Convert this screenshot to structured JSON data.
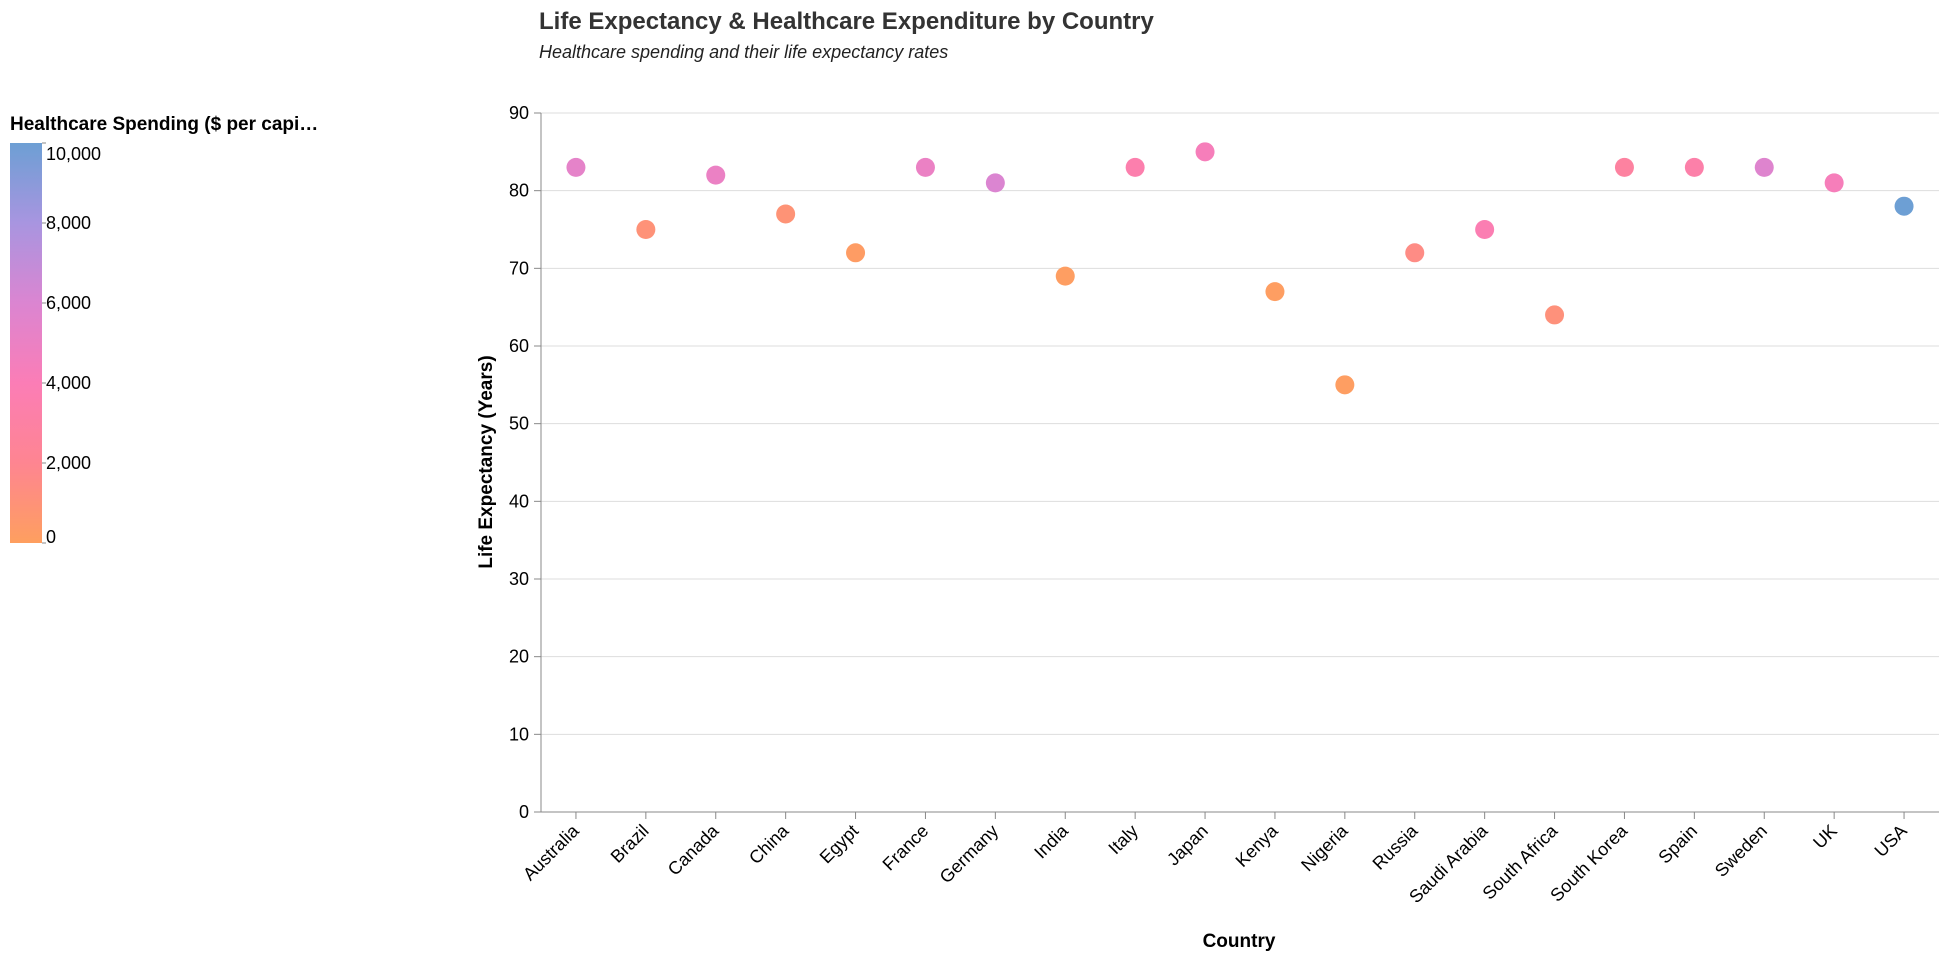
{
  "chart_data": {
    "type": "scatter",
    "title": "Life Expectancy & Healthcare Expenditure by Country",
    "subtitle": "Healthcare spending and their life expectancy rates",
    "xlabel": "Country",
    "ylabel": "Life Expectancy (Years)",
    "ylim": [
      0,
      90
    ],
    "yticks": [
      0,
      10,
      20,
      30,
      40,
      50,
      60,
      70,
      80,
      90
    ],
    "categories": [
      "Australia",
      "Brazil",
      "Canada",
      "China",
      "Egypt",
      "France",
      "Germany",
      "India",
      "Italy",
      "Japan",
      "Kenya",
      "Nigeria",
      "Russia",
      "Saudi Arabia",
      "South Africa",
      "South Korea",
      "Spain",
      "Sweden",
      "UK",
      "USA"
    ],
    "life_expectancy": [
      83,
      75,
      82,
      77,
      72,
      83,
      81,
      69,
      83,
      85,
      67,
      55,
      72,
      75,
      64,
      83,
      83,
      83,
      81,
      78
    ],
    "healthcare_spending": [
      5400,
      1000,
      5000,
      900,
      200,
      5000,
      6000,
      100,
      3500,
      4300,
      100,
      100,
      1500,
      3800,
      1100,
      2800,
      3300,
      5800,
      4300,
      10800
    ],
    "legend": {
      "title": "Healthcare Spending ($ per capi…",
      "placement": "top-left",
      "ticks": [
        0,
        2000,
        4000,
        6000,
        8000,
        10000
      ],
      "tick_labels": [
        "0",
        "2,000",
        "4,000",
        "6,000",
        "8,000",
        "10,000"
      ],
      "domain": [
        0,
        10000
      ]
    },
    "color_scale": [
      "#fe9f5f",
      "#fe8591",
      "#fb7db6",
      "#db85d1",
      "#a895e0",
      "#6d9fd4"
    ],
    "grid": true
  }
}
